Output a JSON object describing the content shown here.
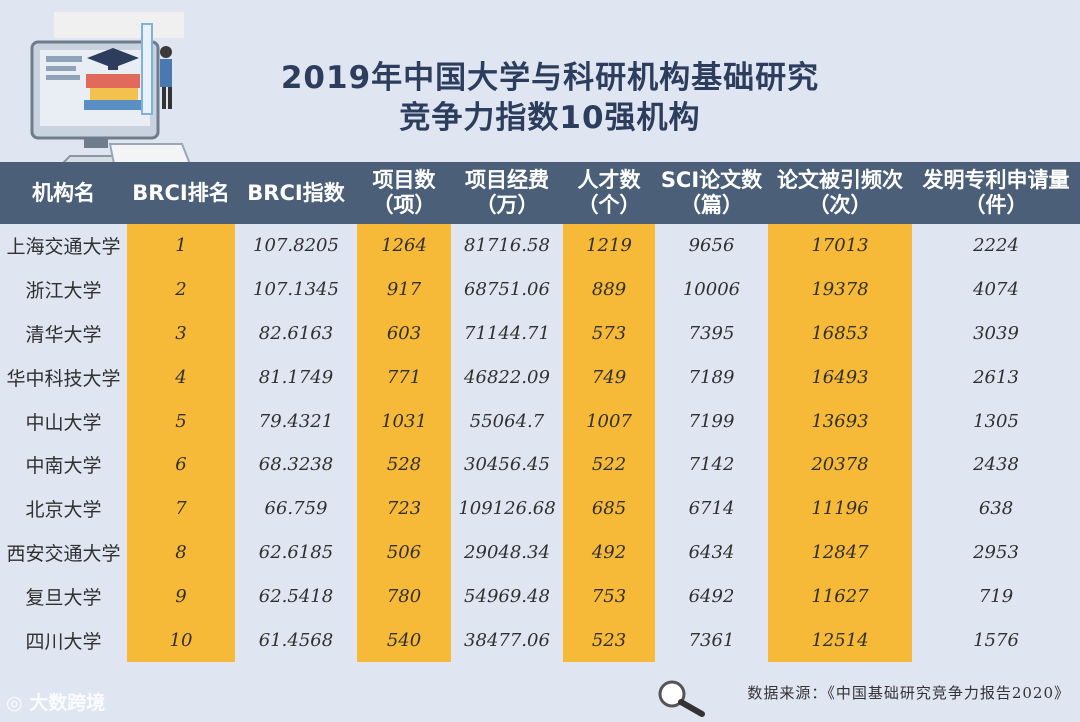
{
  "title_line1": "2019年中国大学与科研机构基础研究",
  "title_line2": "竞争力指数10强机构",
  "watermark": "大数跨境",
  "source": "数据来源：《中国基础研究竞争力报告2020》",
  "colors": {
    "header": "#4b6078",
    "highlight": "#f7b938",
    "background": "#dfe6f1",
    "title": "#2c3d5d"
  },
  "chart_data": {
    "type": "table",
    "columns": [
      [
        "机构名"
      ],
      [
        "BRCI排名"
      ],
      [
        "BRCI指数"
      ],
      [
        "项目数",
        "（项）"
      ],
      [
        "项目经费",
        "（万）"
      ],
      [
        "人才数",
        "（个）"
      ],
      [
        "SCI论文数",
        "（篇）"
      ],
      [
        "论文被引频次",
        "（次）"
      ],
      [
        "发明专利申请量",
        "（件）"
      ]
    ],
    "rows": [
      [
        "上海交通大学",
        "1",
        "107.8205",
        "1264",
        "81716.58",
        "1219",
        "9656",
        "17013",
        "2224"
      ],
      [
        "浙江大学",
        "2",
        "107.1345",
        "917",
        "68751.06",
        "889",
        "10006",
        "19378",
        "4074"
      ],
      [
        "清华大学",
        "3",
        "82.6163",
        "603",
        "71144.71",
        "573",
        "7395",
        "16853",
        "3039"
      ],
      [
        "华中科技大学",
        "4",
        "81.1749",
        "771",
        "46822.09",
        "749",
        "7189",
        "16493",
        "2613"
      ],
      [
        "中山大学",
        "5",
        "79.4321",
        "1031",
        "55064.7",
        "1007",
        "7199",
        "13693",
        "1305"
      ],
      [
        "中南大学",
        "6",
        "68.3238",
        "528",
        "30456.45",
        "522",
        "7142",
        "20378",
        "2438"
      ],
      [
        "北京大学",
        "7",
        "66.759",
        "723",
        "109126.68",
        "685",
        "6714",
        "11196",
        "638"
      ],
      [
        "西安交通大学",
        "8",
        "62.6185",
        "506",
        "29048.34",
        "492",
        "6434",
        "12847",
        "2953"
      ],
      [
        "复旦大学",
        "9",
        "62.5418",
        "780",
        "54969.48",
        "753",
        "6492",
        "11627",
        "719"
      ],
      [
        "四川大学",
        "10",
        "61.4568",
        "540",
        "38477.06",
        "523",
        "7361",
        "12514",
        "1576"
      ]
    ],
    "highlight_columns": [
      1,
      3,
      5,
      7
    ]
  }
}
